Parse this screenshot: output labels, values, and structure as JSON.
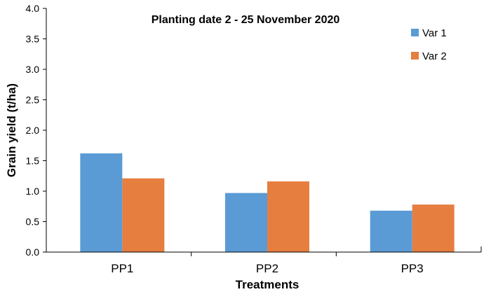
{
  "chart_data": {
    "type": "bar",
    "title": "Planting date 2 - 25 November 2020",
    "xlabel": "Treatments",
    "ylabel": "Grain yield (t/ha)",
    "categories": [
      "PP1",
      "PP2",
      "PP3"
    ],
    "series": [
      {
        "name": "Var 1",
        "color": "#5B9BD5",
        "values": [
          1.62,
          0.97,
          0.68
        ]
      },
      {
        "name": "Var 2",
        "color": "#E57E3F",
        "values": [
          1.21,
          1.16,
          0.78
        ]
      }
    ],
    "ylim": [
      0,
      4.0
    ],
    "yticks": [
      "0.0",
      "0.5",
      "1.0",
      "1.5",
      "2.0",
      "2.5",
      "3.0",
      "3.5",
      "4.0"
    ],
    "grid": false,
    "legend_position": "top-right"
  }
}
